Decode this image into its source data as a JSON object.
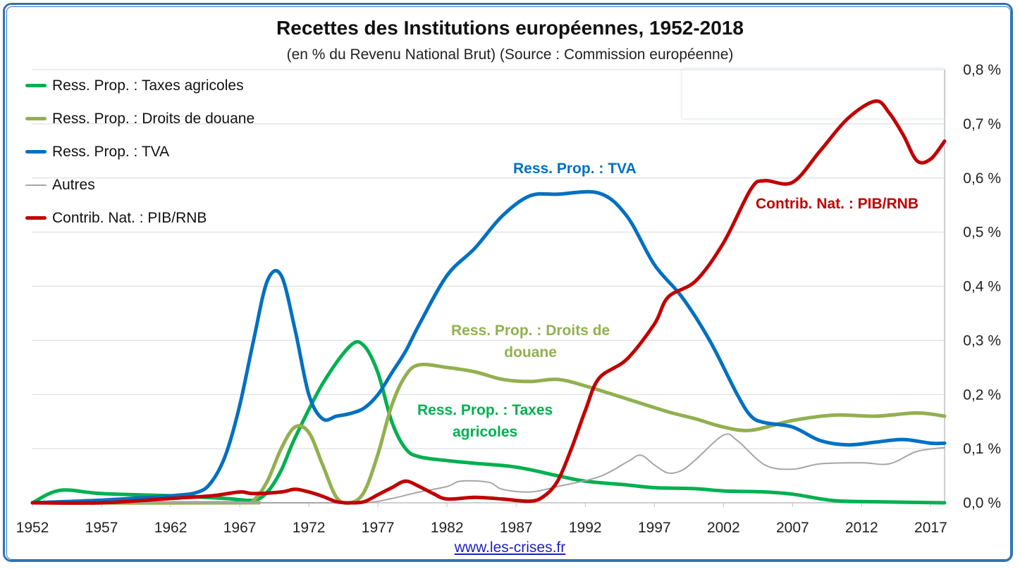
{
  "chart_data": {
    "type": "line",
    "title": "Recettes des Institutions européennes, 1952-2018",
    "subtitle": "(en % du Revenu National Brut) (Source : Commission européenne)",
    "xlabel": "",
    "ylabel": "",
    "xlim": [
      1952,
      2018
    ],
    "ylim": [
      0,
      0.8
    ],
    "x_ticks": [
      "1952",
      "1957",
      "1962",
      "1967",
      "1972",
      "1977",
      "1982",
      "1987",
      "1992",
      "1997",
      "2002",
      "2007",
      "2012",
      "2017"
    ],
    "y_ticks": [
      "0,0 %",
      "0,1 %",
      "0,2 %",
      "0,3 %",
      "0,4 %",
      "0,5 %",
      "0,6 %",
      "0,7 %",
      "0,8 %"
    ],
    "grid": true,
    "legend_position": "top-left",
    "series": [
      {
        "name": "Ress. Prop. : Taxes agricoles",
        "color": "#00b050",
        "points": [
          [
            1952,
            0
          ],
          [
            1954,
            0.023
          ],
          [
            1957,
            0.017
          ],
          [
            1962,
            0.013
          ],
          [
            1966,
            0.008
          ],
          [
            1968,
            0.005
          ],
          [
            1969,
            0.02
          ],
          [
            1970,
            0.06
          ],
          [
            1971,
            0.12
          ],
          [
            1973,
            0.22
          ],
          [
            1975,
            0.29
          ],
          [
            1976,
            0.29
          ],
          [
            1977,
            0.24
          ],
          [
            1978,
            0.15
          ],
          [
            1979,
            0.1
          ],
          [
            1980,
            0.085
          ],
          [
            1982,
            0.078
          ],
          [
            1984,
            0.073
          ],
          [
            1987,
            0.066
          ],
          [
            1990,
            0.05
          ],
          [
            1992,
            0.04
          ],
          [
            1995,
            0.033
          ],
          [
            1997,
            0.028
          ],
          [
            2000,
            0.026
          ],
          [
            2002,
            0.022
          ],
          [
            2005,
            0.02
          ],
          [
            2007,
            0.016
          ],
          [
            2010,
            0.004
          ],
          [
            2013,
            0.002
          ],
          [
            2018,
            0.0
          ]
        ]
      },
      {
        "name": "Ress. Prop. : Droits de douane",
        "color": "#92b050",
        "points": [
          [
            1952,
            0
          ],
          [
            1967,
            0
          ],
          [
            1968,
            0.005
          ],
          [
            1969,
            0.04
          ],
          [
            1970,
            0.1
          ],
          [
            1971,
            0.14
          ],
          [
            1972,
            0.13
          ],
          [
            1973,
            0.07
          ],
          [
            1974,
            0.01
          ],
          [
            1975,
            0.0
          ],
          [
            1976,
            0.02
          ],
          [
            1977,
            0.09
          ],
          [
            1978,
            0.18
          ],
          [
            1979,
            0.235
          ],
          [
            1980,
            0.255
          ],
          [
            1982,
            0.25
          ],
          [
            1984,
            0.242
          ],
          [
            1986,
            0.228
          ],
          [
            1988,
            0.224
          ],
          [
            1990,
            0.228
          ],
          [
            1992,
            0.216
          ],
          [
            1995,
            0.192
          ],
          [
            1998,
            0.168
          ],
          [
            2000,
            0.155
          ],
          [
            2002,
            0.14
          ],
          [
            2004,
            0.134
          ],
          [
            2007,
            0.152
          ],
          [
            2010,
            0.162
          ],
          [
            2013,
            0.16
          ],
          [
            2016,
            0.166
          ],
          [
            2018,
            0.16
          ]
        ]
      },
      {
        "name": "Ress. Prop. : TVA",
        "color": "#0070c0",
        "points": [
          [
            1952,
            0
          ],
          [
            1957,
            0.005
          ],
          [
            1962,
            0.013
          ],
          [
            1964,
            0.02
          ],
          [
            1965,
            0.04
          ],
          [
            1966,
            0.09
          ],
          [
            1967,
            0.18
          ],
          [
            1968,
            0.3
          ],
          [
            1969,
            0.41
          ],
          [
            1970,
            0.42
          ],
          [
            1971,
            0.32
          ],
          [
            1972,
            0.2
          ],
          [
            1973,
            0.155
          ],
          [
            1974,
            0.16
          ],
          [
            1975,
            0.165
          ],
          [
            1976,
            0.175
          ],
          [
            1977,
            0.2
          ],
          [
            1978,
            0.24
          ],
          [
            1979,
            0.28
          ],
          [
            1980,
            0.33
          ],
          [
            1982,
            0.42
          ],
          [
            1984,
            0.47
          ],
          [
            1986,
            0.53
          ],
          [
            1988,
            0.567
          ],
          [
            1990,
            0.57
          ],
          [
            1993,
            0.572
          ],
          [
            1995,
            0.53
          ],
          [
            1997,
            0.44
          ],
          [
            1999,
            0.38
          ],
          [
            2001,
            0.3
          ],
          [
            2003,
            0.2
          ],
          [
            2004,
            0.16
          ],
          [
            2005,
            0.148
          ],
          [
            2007,
            0.14
          ],
          [
            2009,
            0.115
          ],
          [
            2011,
            0.107
          ],
          [
            2013,
            0.112
          ],
          [
            2015,
            0.117
          ],
          [
            2017,
            0.11
          ],
          [
            2018,
            0.11
          ]
        ]
      },
      {
        "name": "Autres",
        "color": "#a6a6a6",
        "points": [
          [
            1952,
            0
          ],
          [
            1972,
            0
          ],
          [
            1976,
            0.0
          ],
          [
            1978,
            0.008
          ],
          [
            1980,
            0.02
          ],
          [
            1982,
            0.03
          ],
          [
            1983,
            0.04
          ],
          [
            1985,
            0.038
          ],
          [
            1986,
            0.025
          ],
          [
            1988,
            0.02
          ],
          [
            1990,
            0.03
          ],
          [
            1993,
            0.048
          ],
          [
            1995,
            0.075
          ],
          [
            1996,
            0.088
          ],
          [
            1997,
            0.07
          ],
          [
            1998,
            0.055
          ],
          [
            1999,
            0.06
          ],
          [
            2000,
            0.08
          ],
          [
            2002,
            0.125
          ],
          [
            2003,
            0.115
          ],
          [
            2005,
            0.07
          ],
          [
            2007,
            0.062
          ],
          [
            2009,
            0.072
          ],
          [
            2012,
            0.074
          ],
          [
            2014,
            0.072
          ],
          [
            2016,
            0.095
          ],
          [
            2018,
            0.102
          ]
        ]
      },
      {
        "name": "Contrib. Nat. : PIB/RNB",
        "color": "#c00000",
        "points": [
          [
            1952,
            0
          ],
          [
            1957,
            0
          ],
          [
            1962,
            0.008
          ],
          [
            1965,
            0.013
          ],
          [
            1967,
            0.02
          ],
          [
            1968,
            0.017
          ],
          [
            1970,
            0.02
          ],
          [
            1971,
            0.025
          ],
          [
            1972,
            0.02
          ],
          [
            1973,
            0.012
          ],
          [
            1974,
            0.002
          ],
          [
            1975,
            0.0
          ],
          [
            1976,
            0.002
          ],
          [
            1977,
            0.015
          ],
          [
            1978,
            0.028
          ],
          [
            1979,
            0.04
          ],
          [
            1980,
            0.03
          ],
          [
            1981,
            0.017
          ],
          [
            1982,
            0.007
          ],
          [
            1984,
            0.01
          ],
          [
            1986,
            0.007
          ],
          [
            1988,
            0.003
          ],
          [
            1989,
            0.012
          ],
          [
            1990,
            0.04
          ],
          [
            1991,
            0.1
          ],
          [
            1992,
            0.17
          ],
          [
            1993,
            0.23
          ],
          [
            1995,
            0.265
          ],
          [
            1997,
            0.33
          ],
          [
            1998,
            0.38
          ],
          [
            2000,
            0.41
          ],
          [
            2002,
            0.48
          ],
          [
            2004,
            0.58
          ],
          [
            2005,
            0.595
          ],
          [
            2007,
            0.592
          ],
          [
            2009,
            0.65
          ],
          [
            2011,
            0.71
          ],
          [
            2013,
            0.742
          ],
          [
            2014,
            0.72
          ],
          [
            2015,
            0.68
          ],
          [
            2016,
            0.632
          ],
          [
            2017,
            0.635
          ],
          [
            2018,
            0.668
          ]
        ]
      }
    ],
    "annotations": [
      {
        "text_lines": [
          "Ress. Prop. : TVA"
        ],
        "color": "#0070c0"
      },
      {
        "text_lines": [
          "Ress. Prop. : Droits de",
          "douane"
        ],
        "color": "#92b050"
      },
      {
        "text_lines": [
          "Ress. Prop. : Taxes",
          "agricoles"
        ],
        "color": "#00b050"
      },
      {
        "text_lines": [
          "Contrib. Nat. : PIB/RNB"
        ],
        "color": "#c00000"
      }
    ]
  },
  "footer": {
    "source_link": "www.les-crises.fr"
  }
}
